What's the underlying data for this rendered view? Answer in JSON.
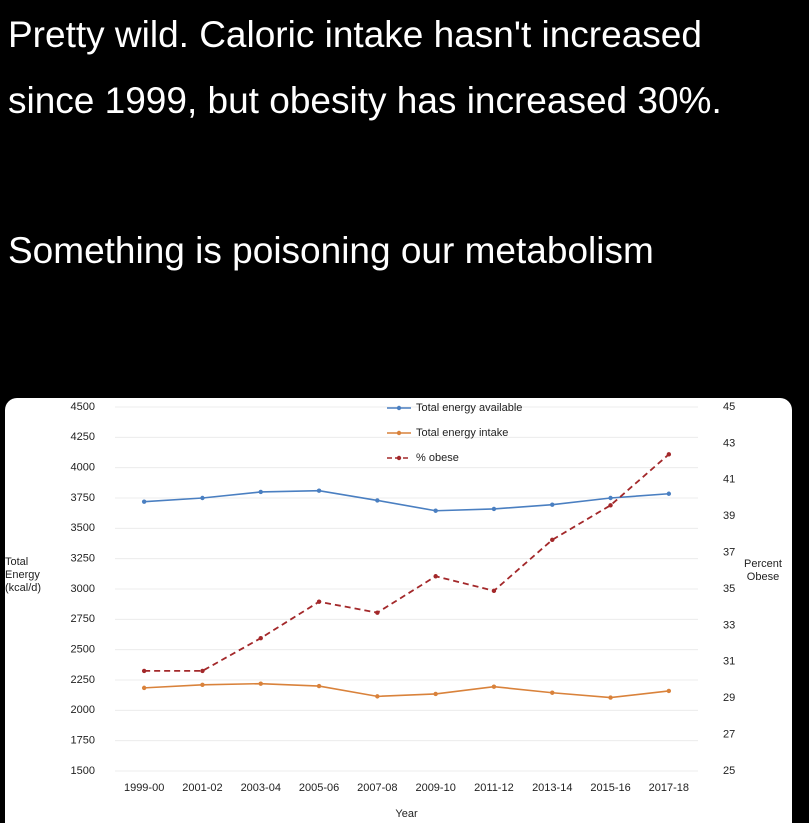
{
  "post": {
    "paragraphs": [
      "Pretty wild. Caloric intake hasn't increased since 1999, but obesity has increased 30%.",
      "Something is poisoning our metabolism"
    ]
  },
  "chart_data": {
    "type": "line",
    "categories": [
      "1999-00",
      "2001-02",
      "2003-04",
      "2005-06",
      "2007-08",
      "2009-10",
      "2011-12",
      "2013-14",
      "2015-16",
      "2017-18"
    ],
    "series": [
      {
        "name": "Total energy available",
        "color": "#4a7fc1",
        "values": [
          3720,
          3750,
          3800,
          3810,
          3730,
          3645,
          3660,
          3695,
          3750,
          3785
        ]
      },
      {
        "name": "Total energy intake",
        "color": "#d9823b",
        "values": [
          2185,
          2210,
          2220,
          2200,
          2115,
          2135,
          2195,
          2145,
          2105,
          2160
        ]
      },
      {
        "name": "% obese",
        "color": "#a3282a",
        "axis": "y2",
        "dashed": true,
        "values": [
          30.5,
          30.5,
          32.3,
          34.3,
          33.7,
          35.7,
          34.9,
          37.7,
          39.6,
          42.4
        ]
      }
    ],
    "ylabel": "Total Energy (kcal/d)",
    "y2label": "Percent Obese",
    "xlabel": "Year",
    "ylim": [
      1500,
      4500
    ],
    "yticks": [
      1500,
      1750,
      2000,
      2250,
      2500,
      2750,
      3000,
      3250,
      3500,
      3750,
      4000,
      4250,
      4500
    ],
    "y2lim": [
      25,
      45
    ],
    "y2ticks": [
      25,
      27,
      29,
      31,
      33,
      35,
      37,
      39,
      41,
      43,
      45
    ],
    "grid": true,
    "legend": "top"
  }
}
